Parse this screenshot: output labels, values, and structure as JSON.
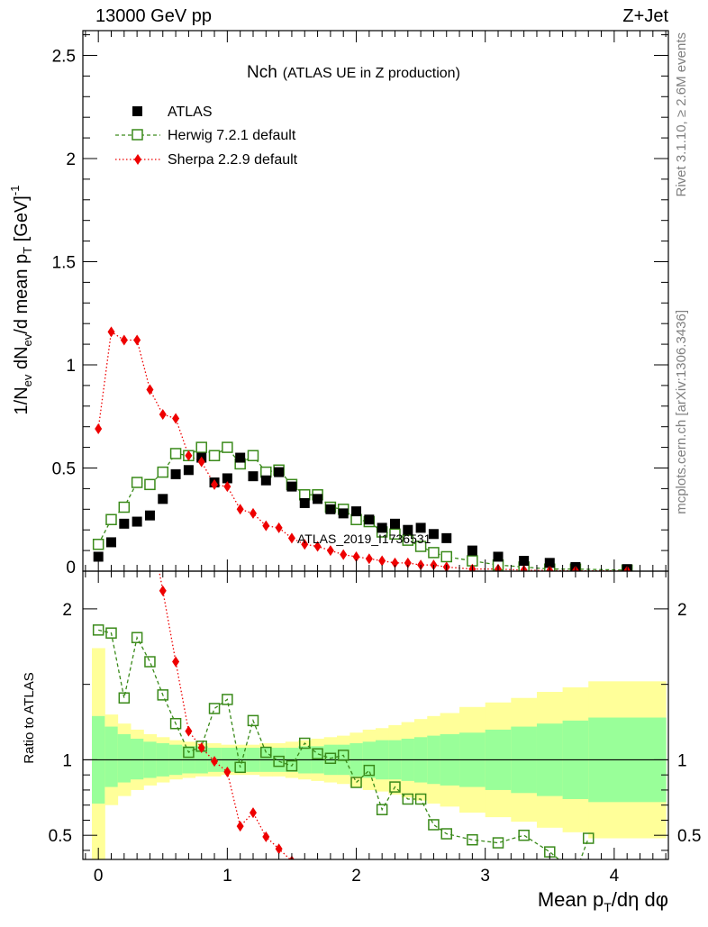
{
  "header": {
    "left": "13000 GeV pp",
    "right": "Z+Jet"
  },
  "plot_title": {
    "main": "Nch",
    "sub": "(ATLAS UE in Z production)"
  },
  "side_labels": {
    "rivet": "Rivet 3.1.10, ≥ 2.6M events",
    "mcplots": "mcplots.cern.ch [arXiv:1306.3436]"
  },
  "watermark": "ATLAS_2019_I1736531",
  "colors": {
    "atlas": "#000000",
    "herwig": "#3a8a1a",
    "sherpa": "#ee0000",
    "band_inner": "#99ff99",
    "band_outer": "#ffff99"
  },
  "chart_data": [
    {
      "type": "scatter",
      "xlabel": "Mean p_T/dη dφ",
      "ylabel": "1/N_ev dN_ev/d mean p_T [GeV]^-1",
      "xlim": [
        -0.12,
        4.42
      ],
      "ylim": [
        0,
        2.62
      ],
      "xticks": [
        0,
        1,
        2,
        3,
        4
      ],
      "yticks": [
        0.5,
        1,
        1.5,
        2,
        2.5
      ],
      "ytick_labels": [
        "0.5",
        "1",
        "1.5",
        "2",
        "2.5"
      ],
      "y_zero_label": "0",
      "legend_position": "top-left",
      "series": [
        {
          "name": "ATLAS",
          "marker": "filled-square",
          "x": [
            0.0,
            0.1,
            0.2,
            0.3,
            0.4,
            0.5,
            0.6,
            0.7,
            0.8,
            0.9,
            1.0,
            1.1,
            1.2,
            1.3,
            1.4,
            1.5,
            1.6,
            1.7,
            1.8,
            1.9,
            2.0,
            2.1,
            2.2,
            2.3,
            2.4,
            2.5,
            2.6,
            2.7,
            2.9,
            3.1,
            3.3,
            3.5,
            3.7,
            4.1
          ],
          "values": [
            0.07,
            0.14,
            0.23,
            0.24,
            0.27,
            0.35,
            0.47,
            0.49,
            0.55,
            0.43,
            0.45,
            0.55,
            0.46,
            0.44,
            0.48,
            0.41,
            0.33,
            0.35,
            0.3,
            0.28,
            0.29,
            0.25,
            0.21,
            0.23,
            0.2,
            0.21,
            0.18,
            0.16,
            0.1,
            0.07,
            0.05,
            0.04,
            0.02,
            0.01
          ]
        },
        {
          "name": "Herwig 7.2.1 default",
          "marker": "open-square-dashed",
          "x": [
            0.0,
            0.1,
            0.2,
            0.3,
            0.4,
            0.5,
            0.6,
            0.7,
            0.8,
            0.9,
            1.0,
            1.1,
            1.2,
            1.3,
            1.4,
            1.5,
            1.6,
            1.7,
            1.8,
            1.9,
            2.0,
            2.1,
            2.2,
            2.3,
            2.4,
            2.5,
            2.6,
            2.7,
            2.9,
            3.1,
            3.3,
            3.5,
            3.7,
            4.1
          ],
          "values": [
            0.13,
            0.25,
            0.31,
            0.43,
            0.42,
            0.48,
            0.57,
            0.56,
            0.6,
            0.56,
            0.6,
            0.52,
            0.56,
            0.48,
            0.49,
            0.42,
            0.37,
            0.37,
            0.31,
            0.3,
            0.25,
            0.24,
            0.19,
            0.18,
            0.15,
            0.12,
            0.09,
            0.07,
            0.05,
            0.03,
            0.02,
            0.01,
            0.01,
            0.005
          ]
        },
        {
          "name": "Sherpa 2.2.9 default",
          "marker": "filled-diamond-dotted",
          "x": [
            0.0,
            0.1,
            0.2,
            0.3,
            0.4,
            0.5,
            0.6,
            0.7,
            0.8,
            0.9,
            1.0,
            1.1,
            1.2,
            1.3,
            1.4,
            1.5,
            1.6,
            1.7,
            1.8,
            1.9,
            2.0,
            2.1,
            2.2,
            2.3,
            2.4,
            2.5,
            2.6,
            2.7,
            2.9,
            3.1,
            3.3,
            3.5,
            3.7,
            4.1
          ],
          "values": [
            0.69,
            1.16,
            1.12,
            1.12,
            0.88,
            0.76,
            0.74,
            0.56,
            0.53,
            0.42,
            0.41,
            0.3,
            0.28,
            0.22,
            0.21,
            0.16,
            0.13,
            0.12,
            0.1,
            0.08,
            0.07,
            0.06,
            0.05,
            0.04,
            0.04,
            0.03,
            0.03,
            0.02,
            0.01,
            0.01,
            0.005,
            0.003,
            0.002,
            0.001
          ]
        }
      ]
    },
    {
      "type": "line",
      "xlabel": "Mean p_T/dη dφ",
      "ylabel": "Ratio to ATLAS",
      "xlim": [
        -0.12,
        4.42
      ],
      "ylim": [
        0.34,
        2.25
      ],
      "xticks": [
        0,
        1,
        2,
        3,
        4
      ],
      "xtick_labels": [
        "0",
        "1",
        "2",
        "3",
        "4"
      ],
      "yticks": [
        0.5,
        1,
        2
      ],
      "ytick_labels": [
        "0.5",
        "1",
        "2"
      ],
      "bands": {
        "edges": [
          -0.05,
          0.05,
          0.15,
          0.25,
          0.35,
          0.45,
          0.55,
          0.65,
          0.75,
          0.85,
          0.95,
          1.05,
          1.15,
          1.25,
          1.35,
          1.45,
          1.55,
          1.65,
          1.75,
          1.85,
          1.95,
          2.05,
          2.15,
          2.25,
          2.35,
          2.45,
          2.55,
          2.65,
          2.8,
          3.0,
          3.2,
          3.4,
          3.6,
          3.8,
          4.4
        ],
        "inner_lo": [
          0.71,
          0.82,
          0.85,
          0.87,
          0.88,
          0.89,
          0.9,
          0.91,
          0.91,
          0.92,
          0.92,
          0.92,
          0.92,
          0.92,
          0.92,
          0.92,
          0.91,
          0.91,
          0.9,
          0.9,
          0.89,
          0.88,
          0.87,
          0.87,
          0.86,
          0.85,
          0.84,
          0.83,
          0.82,
          0.8,
          0.78,
          0.76,
          0.74,
          0.72,
          0.72
        ],
        "inner_hi": [
          1.29,
          1.22,
          1.17,
          1.14,
          1.12,
          1.11,
          1.1,
          1.09,
          1.09,
          1.08,
          1.08,
          1.08,
          1.08,
          1.08,
          1.08,
          1.08,
          1.09,
          1.09,
          1.1,
          1.1,
          1.11,
          1.12,
          1.13,
          1.13,
          1.14,
          1.15,
          1.16,
          1.17,
          1.18,
          1.2,
          1.22,
          1.24,
          1.26,
          1.28,
          1.28
        ],
        "outer_lo": [
          0.26,
          0.7,
          0.76,
          0.8,
          0.83,
          0.85,
          0.87,
          0.88,
          0.89,
          0.89,
          0.9,
          0.9,
          0.9,
          0.89,
          0.89,
          0.88,
          0.87,
          0.86,
          0.85,
          0.84,
          0.82,
          0.8,
          0.79,
          0.77,
          0.75,
          0.73,
          0.71,
          0.69,
          0.65,
          0.62,
          0.59,
          0.55,
          0.52,
          0.48,
          0.48
        ],
        "outer_hi": [
          1.74,
          1.3,
          1.24,
          1.2,
          1.17,
          1.15,
          1.13,
          1.12,
          1.11,
          1.11,
          1.1,
          1.1,
          1.1,
          1.11,
          1.11,
          1.12,
          1.13,
          1.14,
          1.15,
          1.16,
          1.18,
          1.2,
          1.21,
          1.23,
          1.25,
          1.27,
          1.29,
          1.31,
          1.35,
          1.38,
          1.41,
          1.45,
          1.48,
          1.52,
          1.52
        ]
      },
      "series": [
        {
          "name": "Herwig 7.2.1 default",
          "x": [
            0.0,
            0.1,
            0.2,
            0.3,
            0.4,
            0.5,
            0.6,
            0.7,
            0.8,
            0.9,
            1.0,
            1.1,
            1.2,
            1.3,
            1.4,
            1.5,
            1.6,
            1.7,
            1.8,
            1.9,
            2.0,
            2.1,
            2.2,
            2.3,
            2.4,
            2.5,
            2.6,
            2.7,
            2.9,
            3.1,
            3.3,
            3.5,
            3.7,
            3.8
          ],
          "values": [
            1.86,
            1.84,
            1.41,
            1.81,
            1.65,
            1.43,
            1.24,
            1.05,
            1.09,
            1.34,
            1.4,
            0.95,
            1.26,
            1.05,
            0.99,
            0.96,
            1.11,
            1.04,
            1.01,
            1.03,
            0.85,
            0.93,
            0.67,
            0.82,
            0.74,
            0.74,
            0.57,
            0.51,
            0.47,
            0.45,
            0.5,
            0.39,
            0.25,
            0.48
          ]
        },
        {
          "name": "Sherpa 2.2.9 default",
          "x": [
            0.45,
            0.5,
            0.6,
            0.7,
            0.8,
            0.9,
            1.0,
            1.1,
            1.2,
            1.3,
            1.4,
            1.5
          ],
          "values": [
            2.35,
            2.12,
            1.65,
            1.19,
            1.08,
            0.99,
            0.92,
            0.56,
            0.65,
            0.49,
            0.41,
            0.33
          ]
        }
      ],
      "reference_line": 1
    }
  ]
}
